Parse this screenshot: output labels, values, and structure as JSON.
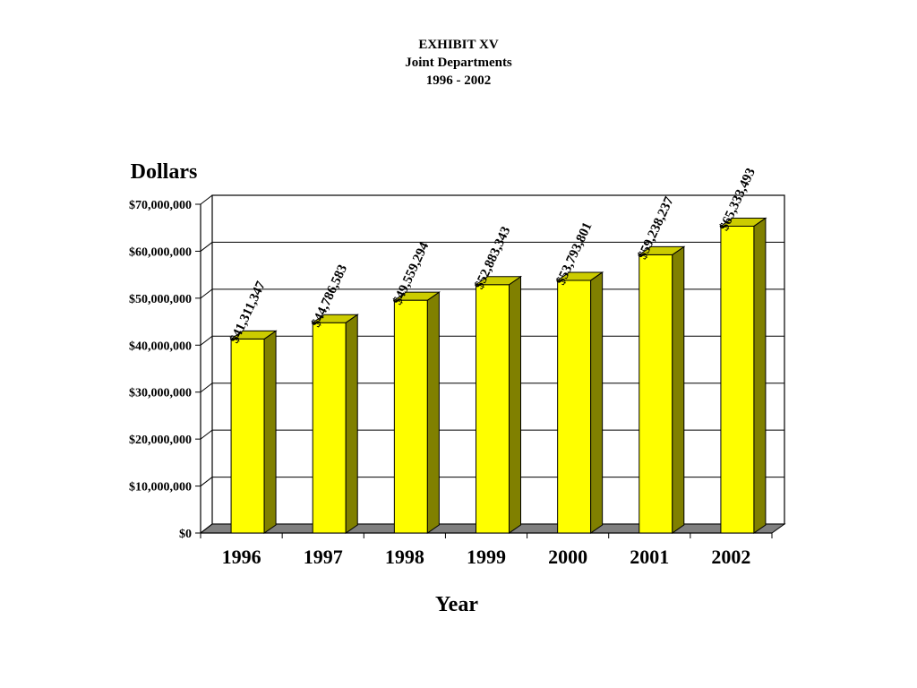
{
  "title_lines": [
    "EXHIBIT XV",
    "Joint Departments",
    "1996 - 2002"
  ],
  "chart_data": {
    "type": "bar",
    "categories": [
      "1996",
      "1997",
      "1998",
      "1999",
      "2000",
      "2001",
      "2002"
    ],
    "values": [
      41311347,
      44786583,
      49559294,
      52883343,
      53793801,
      59238237,
      65333493
    ],
    "data_labels": [
      "$41,311,347",
      "$44,786,583",
      "$49,559,294",
      "$52,883,343",
      "$53,793,801",
      "$59,238,237",
      "$65,333,493"
    ],
    "xlabel": "Year",
    "ylabel": "Dollars",
    "ylim": [
      0,
      70000000
    ],
    "y_ticks": [
      0,
      10000000,
      20000000,
      30000000,
      40000000,
      50000000,
      60000000,
      70000000
    ],
    "y_tick_labels": [
      "$0",
      "$10,000,000",
      "$20,000,000",
      "$30,000,000",
      "$40,000,000",
      "$50,000,000",
      "$60,000,000",
      "$70,000,000"
    ],
    "grid": true,
    "style": "3d-column",
    "colors": {
      "bar_front": "#FFFF00",
      "bar_side": "#808000",
      "bar_top": "#CCCC00",
      "floor": "#808080"
    }
  }
}
